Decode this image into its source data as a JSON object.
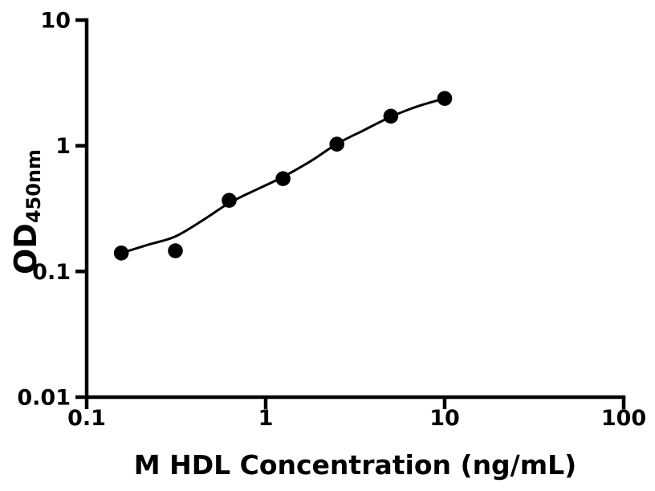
{
  "chart_data": {
    "type": "scatter",
    "title": "",
    "xlabel": "M HDL Concentration (ng/mL)",
    "ylabel_main": "OD",
    "ylabel_sub": "450nm",
    "x_scale": "log",
    "y_scale": "log",
    "xlim": [
      0.1,
      100
    ],
    "ylim": [
      0.01,
      10
    ],
    "x_ticks": [
      0.1,
      1,
      10,
      100
    ],
    "x_tick_labels": [
      "0.1",
      "1",
      "10",
      "100"
    ],
    "y_ticks": [
      0.01,
      0.1,
      1,
      10
    ],
    "y_tick_labels": [
      "0.01",
      "0.1",
      "1",
      "10"
    ],
    "grid": false,
    "legend": null,
    "marker_color": "#000000",
    "curve_color": "#000000",
    "axis_color": "#000000",
    "background_color": "#ffffff",
    "points": [
      {
        "x": 0.156,
        "y": 0.14
      },
      {
        "x": 0.313,
        "y": 0.146
      },
      {
        "x": 0.625,
        "y": 0.368
      },
      {
        "x": 1.25,
        "y": 0.547
      },
      {
        "x": 2.5,
        "y": 1.03
      },
      {
        "x": 5,
        "y": 1.72
      },
      {
        "x": 10,
        "y": 2.38
      }
    ],
    "fit_curve": [
      {
        "x": 0.156,
        "y": 0.14
      },
      {
        "x": 0.22,
        "y": 0.163
      },
      {
        "x": 0.313,
        "y": 0.19
      },
      {
        "x": 0.45,
        "y": 0.258
      },
      {
        "x": 0.625,
        "y": 0.35
      },
      {
        "x": 0.9,
        "y": 0.452
      },
      {
        "x": 1.25,
        "y": 0.565
      },
      {
        "x": 1.8,
        "y": 0.76
      },
      {
        "x": 2.5,
        "y": 1.035
      },
      {
        "x": 3.5,
        "y": 1.32
      },
      {
        "x": 5,
        "y": 1.7
      },
      {
        "x": 7,
        "y": 2.05
      },
      {
        "x": 10,
        "y": 2.38
      }
    ]
  }
}
